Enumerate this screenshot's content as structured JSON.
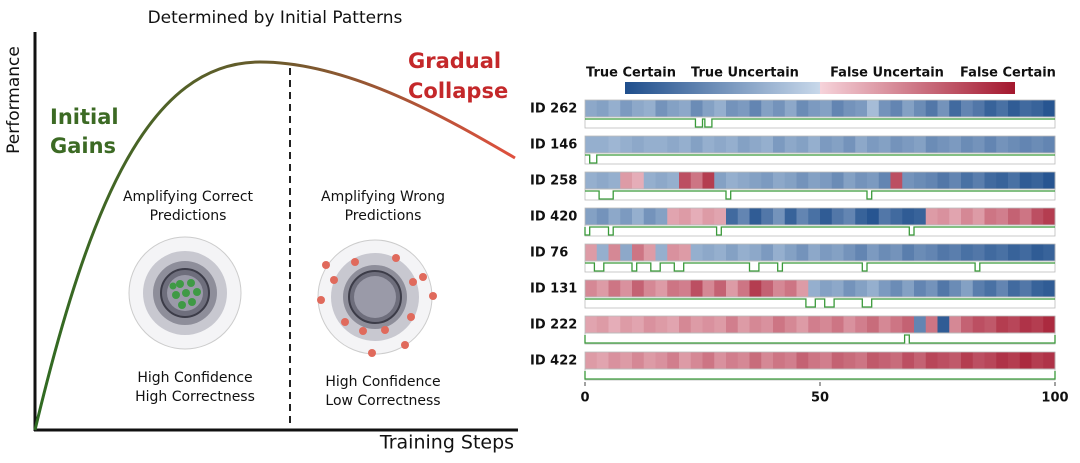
{
  "diagram": {
    "title": "Determined by Initial Patterns",
    "y_label": "Performance",
    "x_label": "Training Steps",
    "phase_left": [
      "Initial",
      "Gains"
    ],
    "phase_right": [
      "Gradual",
      "Collapse"
    ],
    "left_caption": [
      "Amplifying Correct",
      "Predictions"
    ],
    "right_caption": [
      "Amplifying Wrong",
      "Predictions"
    ],
    "left_result": [
      "High Confidence",
      "High Correctness"
    ],
    "right_result": [
      "High Confidence",
      "Low Correctness"
    ]
  },
  "chart_data": {
    "type": "heatmap",
    "colorbar_labels": [
      "True Certain",
      "True Uncertain",
      "False Uncertain",
      "False Certain"
    ],
    "clim": [
      -1,
      1
    ],
    "xlim": [
      0,
      100
    ],
    "xticks": [
      0,
      50,
      100
    ],
    "rows": [
      {
        "name": "ID 262",
        "values": [
          -0.35,
          -0.4,
          -0.3,
          -0.45,
          -0.35,
          -0.3,
          -0.5,
          -0.4,
          -0.35,
          -0.55,
          -0.4,
          -0.3,
          -0.5,
          -0.45,
          -0.6,
          -0.4,
          -0.5,
          -0.35,
          -0.55,
          -0.45,
          -0.4,
          -0.6,
          -0.5,
          -0.45,
          -0.2,
          -0.5,
          -0.6,
          -0.4,
          -0.55,
          -0.7,
          -0.5,
          -0.8,
          -0.6,
          -0.7,
          -0.85,
          -0.75,
          -0.9,
          -0.8,
          -0.85,
          -0.95
        ],
        "incorrect": [
          [
            23.5,
            25
          ],
          [
            25.5,
            27
          ]
        ]
      },
      {
        "name": "ID 146",
        "values": [
          -0.3,
          -0.3,
          -0.25,
          -0.3,
          -0.35,
          -0.3,
          -0.3,
          -0.35,
          -0.3,
          -0.4,
          -0.3,
          -0.35,
          -0.3,
          -0.4,
          -0.35,
          -0.3,
          -0.45,
          -0.35,
          -0.4,
          -0.3,
          -0.45,
          -0.4,
          -0.5,
          -0.35,
          -0.45,
          -0.4,
          -0.5,
          -0.45,
          -0.4,
          -0.55,
          -0.5,
          -0.45,
          -0.55,
          -0.5,
          -0.6,
          -0.5,
          -0.55,
          -0.6,
          -0.55,
          -0.6
        ],
        "incorrect": [
          [
            1,
            2.5
          ]
        ]
      },
      {
        "name": "ID 258",
        "values": [
          -0.3,
          -0.35,
          -0.3,
          0.3,
          0.2,
          -0.3,
          -0.35,
          -0.3,
          0.7,
          0.5,
          0.8,
          -0.4,
          -0.3,
          -0.35,
          -0.4,
          -0.45,
          -0.35,
          -0.4,
          -0.5,
          -0.4,
          -0.45,
          -0.55,
          -0.4,
          -0.5,
          -0.45,
          -0.6,
          0.7,
          -0.5,
          -0.55,
          -0.6,
          -0.7,
          -0.6,
          -0.75,
          -0.65,
          -0.8,
          -0.85,
          -0.75,
          -0.9,
          -0.85,
          -0.95
        ],
        "incorrect": [
          [
            3,
            6
          ],
          [
            30,
            31
          ],
          [
            60,
            61
          ]
        ]
      },
      {
        "name": "ID 420",
        "values": [
          -0.4,
          -0.5,
          -0.35,
          -0.45,
          -0.3,
          -0.5,
          -0.4,
          0.25,
          0.3,
          0.2,
          0.3,
          0.25,
          -0.8,
          -0.6,
          -0.9,
          -0.7,
          -0.5,
          -0.85,
          -0.6,
          -0.75,
          -0.9,
          -0.7,
          -0.6,
          -0.85,
          -0.95,
          -0.7,
          -0.8,
          -0.9,
          -0.85,
          0.3,
          0.35,
          0.25,
          0.4,
          0.3,
          0.5,
          0.45,
          0.6,
          0.5,
          0.7,
          0.8
        ],
        "incorrect": [
          [
            0,
            1
          ],
          [
            5,
            6
          ],
          [
            28,
            29
          ],
          [
            69,
            70
          ]
        ]
      },
      {
        "name": "ID 76",
        "values": [
          0.3,
          -0.3,
          0.4,
          -0.35,
          0.5,
          0.3,
          -0.3,
          0.35,
          0.3,
          -0.3,
          -0.35,
          -0.3,
          -0.4,
          -0.3,
          -0.35,
          -0.45,
          -0.3,
          -0.4,
          -0.5,
          -0.35,
          -0.45,
          -0.4,
          -0.5,
          -0.6,
          -0.45,
          -0.55,
          -0.5,
          -0.65,
          -0.55,
          -0.6,
          -0.7,
          -0.65,
          -0.75,
          -0.7,
          -0.8,
          -0.75,
          -0.85,
          -0.8,
          -0.9,
          -0.85
        ],
        "incorrect": [
          [
            2,
            4
          ],
          [
            10,
            11
          ],
          [
            14,
            16
          ],
          [
            19,
            21
          ],
          [
            35,
            37
          ],
          [
            41,
            42
          ],
          [
            59,
            60
          ],
          [
            83,
            84
          ]
        ]
      },
      {
        "name": "ID 131",
        "values": [
          0.4,
          0.3,
          0.5,
          0.35,
          0.6,
          0.4,
          0.3,
          0.5,
          0.45,
          0.7,
          0.4,
          0.6,
          0.3,
          0.5,
          0.8,
          0.6,
          0.4,
          0.5,
          0.3,
          -0.3,
          -0.4,
          -0.35,
          -0.5,
          -0.4,
          -0.3,
          -0.45,
          -0.55,
          -0.4,
          -0.6,
          -0.5,
          -0.7,
          -0.55,
          -0.4,
          -0.65,
          -0.75,
          -0.6,
          -0.8,
          -0.7,
          -0.85,
          -0.9
        ],
        "incorrect": [
          [
            47,
            49
          ],
          [
            51,
            53
          ],
          [
            59,
            61
          ]
        ]
      },
      {
        "name": "ID 222",
        "values": [
          0.25,
          0.3,
          0.2,
          0.3,
          0.25,
          0.35,
          0.3,
          0.25,
          0.4,
          0.3,
          0.35,
          0.3,
          0.45,
          0.3,
          0.4,
          0.35,
          0.5,
          0.4,
          0.3,
          0.45,
          0.4,
          0.5,
          0.35,
          0.45,
          0.55,
          0.4,
          0.5,
          0.6,
          -0.6,
          0.5,
          -0.9,
          0.4,
          0.6,
          0.7,
          0.65,
          0.8,
          0.75,
          0.85,
          0.8,
          0.9
        ],
        "incorrect": [
          [
            0,
            68
          ],
          [
            69,
            100
          ]
        ]
      },
      {
        "name": "ID 422",
        "values": [
          0.3,
          0.25,
          0.35,
          0.3,
          0.4,
          0.3,
          0.35,
          0.45,
          0.3,
          0.4,
          0.5,
          0.35,
          0.45,
          0.4,
          0.55,
          0.4,
          0.5,
          0.45,
          0.6,
          0.5,
          0.45,
          0.6,
          0.55,
          0.5,
          0.65,
          0.6,
          0.55,
          0.7,
          0.6,
          0.75,
          0.7,
          0.65,
          0.8,
          0.7,
          0.75,
          0.85,
          0.8,
          0.9,
          0.8,
          0.85
        ],
        "incorrect": [
          [
            0,
            100
          ]
        ]
      }
    ]
  }
}
